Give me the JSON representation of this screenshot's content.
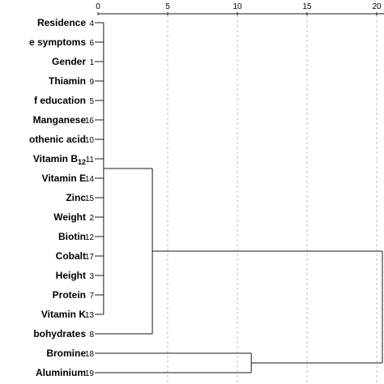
{
  "axis": {
    "ticks": [
      "0",
      "5",
      "10",
      "15",
      "20"
    ],
    "tick_values": [
      0,
      5,
      10,
      15,
      20
    ]
  },
  "leaves": [
    {
      "label": "Residence",
      "id": "4"
    },
    {
      "label": "e symptoms",
      "id": "6"
    },
    {
      "label": "Gender",
      "id": "1"
    },
    {
      "label": "Thiamin",
      "id": "9"
    },
    {
      "label": "f education",
      "id": "5"
    },
    {
      "label": "Manganese",
      "id": "16"
    },
    {
      "label": "othenic acid",
      "id": "10"
    },
    {
      "label": "Vitamin B",
      "sub": "12",
      "id": "11"
    },
    {
      "label": "Vitamin E",
      "id": "14"
    },
    {
      "label": "Zinc",
      "id": "15"
    },
    {
      "label": "Weight",
      "id": "2"
    },
    {
      "label": "Biotin",
      "id": "12"
    },
    {
      "label": "Cobalt",
      "id": "17"
    },
    {
      "label": "Height",
      "id": "3"
    },
    {
      "label": "Protein",
      "id": "7"
    },
    {
      "label": "Vitamin K",
      "id": "13"
    },
    {
      "label": "bohydrates",
      "id": "8"
    },
    {
      "label": "Bromine",
      "id": "18"
    },
    {
      "label": "Aluminium",
      "id": "19"
    }
  ],
  "merges": [
    {
      "members": [
        0,
        1,
        2,
        3,
        4,
        5,
        6,
        7,
        8,
        9,
        10,
        11,
        12,
        13,
        14,
        15
      ],
      "distance": 0.4
    },
    {
      "members": [
        0,
        1,
        2,
        3,
        4,
        5,
        6,
        7,
        8,
        9,
        10,
        11,
        12
      ],
      "distance": 1.2
    },
    {
      "members": [
        13,
        14,
        15
      ],
      "distance": 1.2
    },
    {
      "members": [
        0,
        1,
        2,
        3,
        4,
        5,
        6,
        7,
        8,
        9,
        10,
        11,
        12,
        13,
        14,
        15
      ],
      "distance": 1.7
    },
    {
      "members": [
        0,
        1,
        2,
        3,
        4,
        5,
        6,
        7,
        8,
        9,
        10,
        11,
        12,
        13,
        14,
        15,
        16
      ],
      "distance": 3.9
    },
    {
      "members": [
        17,
        18
      ],
      "distance": 11.0
    },
    {
      "members": [
        0,
        1,
        2,
        3,
        4,
        5,
        6,
        7,
        8,
        9,
        10,
        11,
        12,
        13,
        14,
        15,
        16,
        17,
        18
      ],
      "distance": 25.0
    }
  ],
  "colors": {
    "line": "#1a1a1a",
    "grid": "#bdbdbd",
    "text": "#000000"
  }
}
